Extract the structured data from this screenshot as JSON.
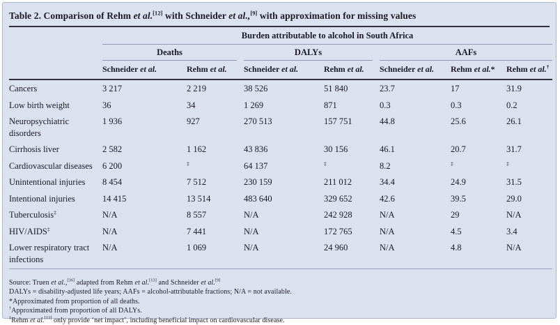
{
  "title_rich": [
    {
      "t": "Table 2. Comparison of Rehm "
    },
    {
      "t": "et al.",
      "i": true
    },
    {
      "t": "[12]",
      "sup": true
    },
    {
      "t": " with Schneider "
    },
    {
      "t": "et al.,",
      "i": true
    },
    {
      "t": "[9]",
      "sup": true
    },
    {
      "t": " with approximation for missing values"
    }
  ],
  "table": {
    "span_header": "Burden attributable to alcohol in South Africa",
    "groups": [
      {
        "label": "Deaths"
      },
      {
        "label": "DALYs"
      },
      {
        "label": "AAFs"
      }
    ],
    "columns": [
      [
        {
          "t": "Schneider "
        },
        {
          "t": "et al.",
          "i": true
        }
      ],
      [
        {
          "t": "Rehm "
        },
        {
          "t": "et al.",
          "i": true
        }
      ],
      [
        {
          "t": "Schneider "
        },
        {
          "t": "et al.",
          "i": true
        }
      ],
      [
        {
          "t": "Rehm "
        },
        {
          "t": "et al.",
          "i": true
        }
      ],
      [
        {
          "t": "Schneider "
        },
        {
          "t": "et al.",
          "i": true
        }
      ],
      [
        {
          "t": "Rehm "
        },
        {
          "t": "et al.",
          "i": true
        },
        {
          "t": "*"
        }
      ],
      [
        {
          "t": "Rehm "
        },
        {
          "t": "et al.",
          "i": true
        },
        {
          "t": "†",
          "sup": true
        }
      ]
    ],
    "rows": [
      {
        "label": [
          {
            "t": "Cancers"
          }
        ],
        "values": [
          "3 217",
          "2 219",
          "38 526",
          "51 840",
          "23.7",
          "17",
          "31.9"
        ]
      },
      {
        "label": [
          {
            "t": "Low birth weight"
          }
        ],
        "values": [
          "36",
          "34",
          "1 269",
          "871",
          "0.3",
          "0.3",
          "0.2"
        ]
      },
      {
        "label": [
          {
            "t": "Neuropsychiatric disorders"
          }
        ],
        "values": [
          "1 936",
          "927",
          "270 513",
          "157 751",
          "44.8",
          "25.6",
          "26.1"
        ]
      },
      {
        "label": [
          {
            "t": "Cirrhosis liver"
          }
        ],
        "values": [
          "2 582",
          "1 162",
          "43 836",
          "30 156",
          "46.1",
          "20.7",
          "31.7"
        ]
      },
      {
        "label": [
          {
            "t": "Cardiovascular diseases"
          }
        ],
        "values": [
          "6 200",
          "‡",
          "64 137",
          "‡",
          "8.2",
          "‡",
          "‡"
        ]
      },
      {
        "label": [
          {
            "t": "Unintentional injuries"
          }
        ],
        "values": [
          "8 454",
          "7 512",
          "230 159",
          "211 012",
          "34.4",
          "24.9",
          "31.5"
        ]
      },
      {
        "label": [
          {
            "t": "Intentional injuries"
          }
        ],
        "values": [
          "14 415",
          "13 514",
          "483 640",
          "329 652",
          "42.6",
          "39.5",
          "29.0"
        ]
      },
      {
        "label": [
          {
            "t": "Tuberculosis"
          },
          {
            "t": "‡",
            "sup": true
          }
        ],
        "values": [
          "N/A",
          "8 557",
          "N/A",
          "242 928",
          "N/A",
          "29",
          "N/A"
        ]
      },
      {
        "label": [
          {
            "t": "HIV/AIDS"
          },
          {
            "t": "‡",
            "sup": true
          }
        ],
        "values": [
          "N/A",
          "7 441",
          "N/A",
          "172 765",
          "N/A",
          "4.5",
          "3.4"
        ]
      },
      {
        "label": [
          {
            "t": "Lower respiratory tract infections"
          }
        ],
        "values": [
          "N/A",
          "1 069",
          "N/A",
          "24 960",
          "N/A",
          "4.8",
          "N/A"
        ]
      }
    ]
  },
  "footnotes": [
    [
      {
        "t": "Source: Truen "
      },
      {
        "t": "et al.,",
        "i": true
      },
      {
        "t": "[36]",
        "sup": true
      },
      {
        "t": " adapted from Rehm "
      },
      {
        "t": "et al.",
        "i": true
      },
      {
        "t": "[13]",
        "sup": true
      },
      {
        "t": " and Schneider "
      },
      {
        "t": "et al.",
        "i": true
      },
      {
        "t": "[9]",
        "sup": true
      }
    ],
    [
      {
        "t": "DALYs = disability-adjusted life years; AAFs = alcohol-attributable fractions; N/A = not available."
      }
    ],
    [
      {
        "t": "*Approximated from proportion of all deaths."
      }
    ],
    [
      {
        "t": "†",
        "sup": true
      },
      {
        "t": "Approximated from proportion of all DALYs."
      }
    ],
    [
      {
        "t": "‡",
        "sup": true
      },
      {
        "t": "Rehm "
      },
      {
        "t": "et al.",
        "i": true
      },
      {
        "t": "[13]",
        "sup": true
      },
      {
        "t": " only provide ‘net impact’, including beneficial impact on cardiovascular disease."
      }
    ]
  ],
  "colors": {
    "panel_background": "#dbe1ee",
    "panel_border": "#a9b6cd",
    "dark_rule": "#2f2f3a",
    "light_rule": "#8d96aa",
    "text": "#1a1a24"
  }
}
